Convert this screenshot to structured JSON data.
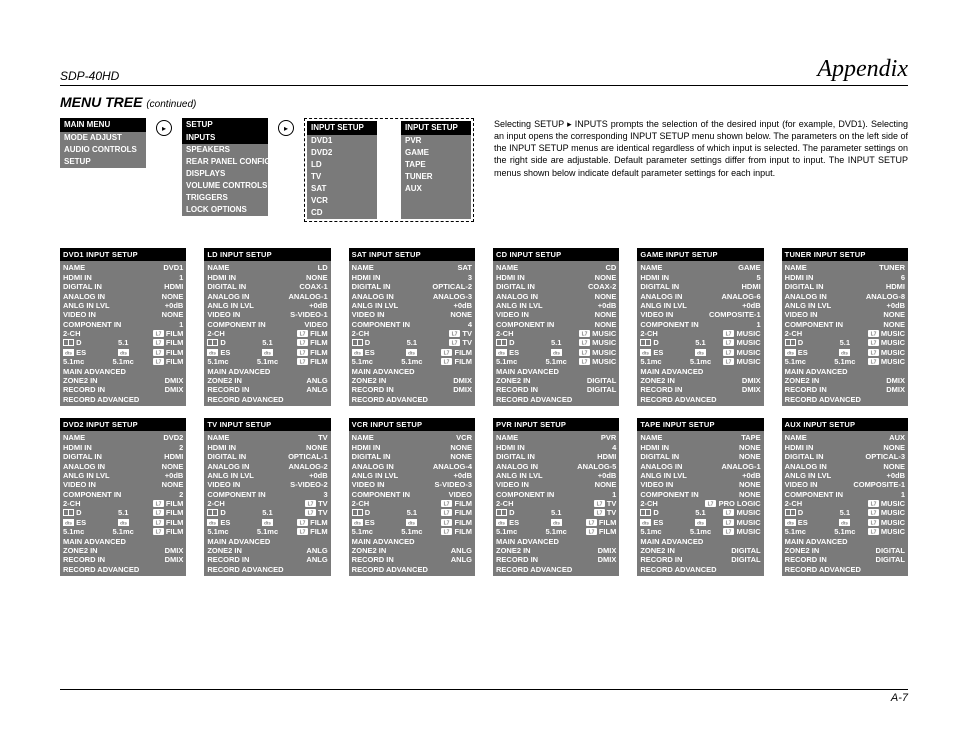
{
  "header": {
    "model": "SDP-40HD",
    "section": "Appendix",
    "title": "MENU TREE",
    "cont": "(continued)",
    "footer": "A-7"
  },
  "nav": {
    "main": {
      "h": "MAIN MENU",
      "items": [
        "MODE ADJUST",
        "AUDIO CONTROLS",
        "SETUP"
      ]
    },
    "setup": {
      "h": "SETUP",
      "items": [
        "INPUTS",
        "SPEAKERS",
        "REAR PANEL CONFIG",
        "DISPLAYS",
        "VOLUME CONTROLS",
        "TRIGGERS",
        "LOCK OPTIONS"
      ],
      "sel": 0
    },
    "inputs1": {
      "h": "INPUT SETUP",
      "items": [
        "DVD1",
        "DVD2",
        "LD",
        "TV",
        "SAT",
        "VCR",
        "CD"
      ]
    },
    "inputs2": {
      "h": "INPUT SETUP",
      "items": [
        "PVR",
        "GAME",
        "TAPE",
        "TUNER",
        "AUX"
      ]
    }
  },
  "para": "Selecting SETUP ▸ INPUTS prompts the selection of the desired input (for example, DVD1). Selecting an input opens the corresponding INPUT SETUP menu shown below. The parameters on the left side of the INPUT SETUP menus are identical regardless of which input is selected. The parameter settings on the right side are adjustable. Default parameter settings differ from input to input. The INPUT SETUP menus shown below indicate default parameter settings for each input.",
  "labels": {
    "name": "NAME",
    "hdmi": "HDMI IN",
    "dig": "DIGITAL IN",
    "anlg": "ANALOG IN",
    "lvl": "ANLG IN LVL",
    "vid": "VIDEO IN",
    "comp": "COMPONENT IN",
    "ch2": "2-CH",
    "dd": "D",
    "f51": "5.1",
    "dts": "ES",
    "mc": "5.1mc",
    "mc2": "5.1mc",
    "madv": "MAIN ADVANCED",
    "z2": "ZONE2 IN",
    "rec": "RECORD IN",
    "radv": "RECORD ADVANCED"
  },
  "p": [
    {
      "h": "DVD1 INPUT SETUP",
      "name": "DVD1",
      "hdmi": "1",
      "dig": "HDMI",
      "anlg": "NONE",
      "lvl": "+0dB",
      "vid": "NONE",
      "comp": "1",
      "ch2": "FILM",
      "dd": "5.1",
      "dd2": "FILM",
      "dts": "FILM",
      "mc": "5.1mc",
      "mc2": "FILM",
      "z2": "DMIX",
      "rec": "DMIX"
    },
    {
      "h": "LD INPUT SETUP",
      "name": "LD",
      "hdmi": "NONE",
      "dig": "COAX-1",
      "anlg": "ANALOG-1",
      "lvl": "+0dB",
      "vid": "S-VIDEO-1",
      "comp": "VIDEO",
      "ch2": "FILM",
      "dd": "5.1",
      "dd2": "FILM",
      "dts": "FILM",
      "mc": "5.1mc",
      "mc2": "FILM",
      "z2": "ANLG",
      "rec": "ANLG"
    },
    {
      "h": "SAT INPUT SETUP",
      "name": "SAT",
      "hdmi": "3",
      "dig": "OPTICAL-2",
      "anlg": "ANALOG-3",
      "lvl": "+0dB",
      "vid": "NONE",
      "comp": "4",
      "ch2": "TV",
      "dd": "5.1",
      "dd2": "TV",
      "dts": "FILM",
      "mc": "5.1mc",
      "mc2": "FILM",
      "z2": "DMIX",
      "rec": "DMIX"
    },
    {
      "h": "CD INPUT SETUP",
      "name": "CD",
      "hdmi": "NONE",
      "dig": "COAX-2",
      "anlg": "NONE",
      "lvl": "+0dB",
      "vid": "NONE",
      "comp": "NONE",
      "ch2": "MUSIC",
      "dd": "5.1",
      "dd2": "MUSIC",
      "dts": "MUSIC",
      "mc": "5.1mc",
      "mc2": "MUSIC",
      "z2": "DIGITAL",
      "rec": "DIGITAL"
    },
    {
      "h": "GAME INPUT SETUP",
      "name": "GAME",
      "hdmi": "5",
      "dig": "HDMI",
      "anlg": "ANALOG-6",
      "lvl": "+0dB",
      "vid": "COMPOSITE-1",
      "comp": "1",
      "ch2": "MUSIC",
      "dd": "5.1",
      "dd2": "MUSIC",
      "dts": "MUSIC",
      "mc": "5.1mc",
      "mc2": "MUSIC",
      "z2": "DMIX",
      "rec": "DMIX"
    },
    {
      "h": "TUNER INPUT SETUP",
      "name": "TUNER",
      "hdmi": "6",
      "dig": "HDMI",
      "anlg": "ANALOG-8",
      "lvl": "+0dB",
      "vid": "NONE",
      "comp": "NONE",
      "ch2": "MUSIC",
      "dd": "5.1",
      "dd2": "MUSIC",
      "dts": "MUSIC",
      "mc": "5.1mc",
      "mc2": "MUSIC",
      "z2": "DMIX",
      "rec": "DMIX"
    },
    {
      "h": "DVD2 INPUT SETUP",
      "name": "DVD2",
      "hdmi": "2",
      "dig": "HDMI",
      "anlg": "NONE",
      "lvl": "+0dB",
      "vid": "NONE",
      "comp": "2",
      "ch2": "FILM",
      "dd": "5.1",
      "dd2": "FILM",
      "dts": "FILM",
      "mc": "5.1mc",
      "mc2": "FILM",
      "z2": "DMIX",
      "rec": "DMIX"
    },
    {
      "h": "TV INPUT SETUP",
      "name": "TV",
      "hdmi": "NONE",
      "dig": "OPTICAL-1",
      "anlg": "ANALOG-2",
      "lvl": "+0dB",
      "vid": "S-VIDEO-2",
      "comp": "3",
      "ch2": "TV",
      "dd": "5.1",
      "dd2": "TV",
      "dts": "FILM",
      "mc": "5.1mc",
      "mc2": "FILM",
      "z2": "ANLG",
      "rec": "ANLG"
    },
    {
      "h": "VCR INPUT SETUP",
      "name": "VCR",
      "hdmi": "NONE",
      "dig": "NONE",
      "anlg": "ANALOG-4",
      "lvl": "+0dB",
      "vid": "S-VIDEO-3",
      "comp": "VIDEO",
      "ch2": "FILM",
      "dd": "5.1",
      "dd2": "FILM",
      "dts": "FILM",
      "mc": "5.1mc",
      "mc2": "FILM",
      "z2": "ANLG",
      "rec": "ANLG"
    },
    {
      "h": "PVR INPUT SETUP",
      "name": "PVR",
      "hdmi": "4",
      "dig": "HDMI",
      "anlg": "ANALOG-5",
      "lvl": "+0dB",
      "vid": "NONE",
      "comp": "1",
      "ch2": "TV",
      "dd": "5.1",
      "dd2": "TV",
      "dts": "FILM",
      "mc": "5.1mc",
      "mc2": "FILM",
      "z2": "DMIX",
      "rec": "DMIX"
    },
    {
      "h": "TAPE INPUT SETUP",
      "name": "TAPE",
      "hdmi": "NONE",
      "dig": "NONE",
      "anlg": "ANALOG-1",
      "lvl": "+0dB",
      "vid": "NONE",
      "comp": "NONE",
      "ch2": "PRO LOGIC",
      "dd": "5.1",
      "dd2": "MUSIC",
      "dts": "MUSIC",
      "mc": "5.1mc",
      "mc2": "MUSIC",
      "z2": "DIGITAL",
      "rec": "DIGITAL"
    },
    {
      "h": "AUX INPUT SETUP",
      "name": "AUX",
      "hdmi": "NONE",
      "dig": "OPTICAL-3",
      "anlg": "NONE",
      "lvl": "+0dB",
      "vid": "COMPOSITE-1",
      "comp": "1",
      "ch2": "MUSIC",
      "dd": "5.1",
      "dd2": "MUSIC",
      "dts": "MUSIC",
      "mc": "5.1mc",
      "mc2": "MUSIC",
      "z2": "DIGITAL",
      "rec": "DIGITAL"
    }
  ]
}
